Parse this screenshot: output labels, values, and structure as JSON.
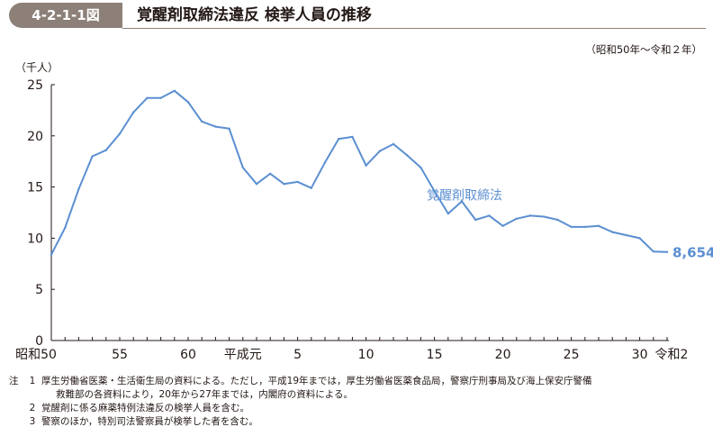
{
  "figure": {
    "label": "4-2-1-1図",
    "title": "覚醒剤取締法違反 検挙人員の推移",
    "period": "（昭和50年～令和２年）"
  },
  "chart_data": {
    "type": "line",
    "y_unit_label": "（千人）",
    "ylim": [
      0,
      25
    ],
    "y_ticks": [
      0,
      5,
      10,
      15,
      20,
      25
    ],
    "x": [
      "1975",
      "1976",
      "1977",
      "1978",
      "1979",
      "1980",
      "1981",
      "1982",
      "1983",
      "1984",
      "1985",
      "1986",
      "1987",
      "1988",
      "1989",
      "1990",
      "1991",
      "1992",
      "1993",
      "1994",
      "1995",
      "1996",
      "1997",
      "1998",
      "1999",
      "2000",
      "2001",
      "2002",
      "2003",
      "2004",
      "2005",
      "2006",
      "2007",
      "2008",
      "2009",
      "2010",
      "2011",
      "2012",
      "2013",
      "2014",
      "2015",
      "2016",
      "2017",
      "2018",
      "2019",
      "2020"
    ],
    "x_tick_labels": [
      {
        "at": "1975",
        "label": "昭和50"
      },
      {
        "at": "1980",
        "label": "55"
      },
      {
        "at": "1985",
        "label": "60"
      },
      {
        "at": "1989",
        "label": "平成元"
      },
      {
        "at": "1993",
        "label": "5"
      },
      {
        "at": "1998",
        "label": "10"
      },
      {
        "at": "2003",
        "label": "15"
      },
      {
        "at": "2008",
        "label": "20"
      },
      {
        "at": "2013",
        "label": "25"
      },
      {
        "at": "2018",
        "label": "30"
      },
      {
        "at": "2020",
        "label": "令和2"
      }
    ],
    "series": [
      {
        "name": "覚醒剤取締法",
        "color": "#5b8fd1",
        "values": [
          8.4,
          11.0,
          14.8,
          18.0,
          18.6,
          20.2,
          22.3,
          23.7,
          23.7,
          24.4,
          23.3,
          21.4,
          20.9,
          20.7,
          16.9,
          15.3,
          16.3,
          15.3,
          15.5,
          14.9,
          17.4,
          19.7,
          19.9,
          17.1,
          18.5,
          19.2,
          18.1,
          16.9,
          14.6,
          12.4,
          13.6,
          11.8,
          12.2,
          11.2,
          11.9,
          12.2,
          12.1,
          11.8,
          11.1,
          11.1,
          11.2,
          10.6,
          10.3,
          10.0,
          8.7,
          8.654
        ],
        "end_label": "8,654"
      }
    ],
    "grid": false,
    "axis_color": "#231815"
  },
  "notes": {
    "prefix": "注",
    "items": [
      {
        "num": "1",
        "lines": [
          "厚生労働省医薬・生活衛生局の資料による。ただし，平成19年までは，厚生労働省医薬食品局，警察庁刑事局及び海上保安庁警備",
          "救難部の各資料により，20年から27年までは，内閣府の資料による。"
        ]
      },
      {
        "num": "2",
        "lines": [
          "覚醒剤に係る麻薬特例法違反の検挙人員を含む。"
        ]
      },
      {
        "num": "3",
        "lines": [
          "警察のほか，特別司法警察員が検挙した者を含む。"
        ]
      }
    ]
  }
}
